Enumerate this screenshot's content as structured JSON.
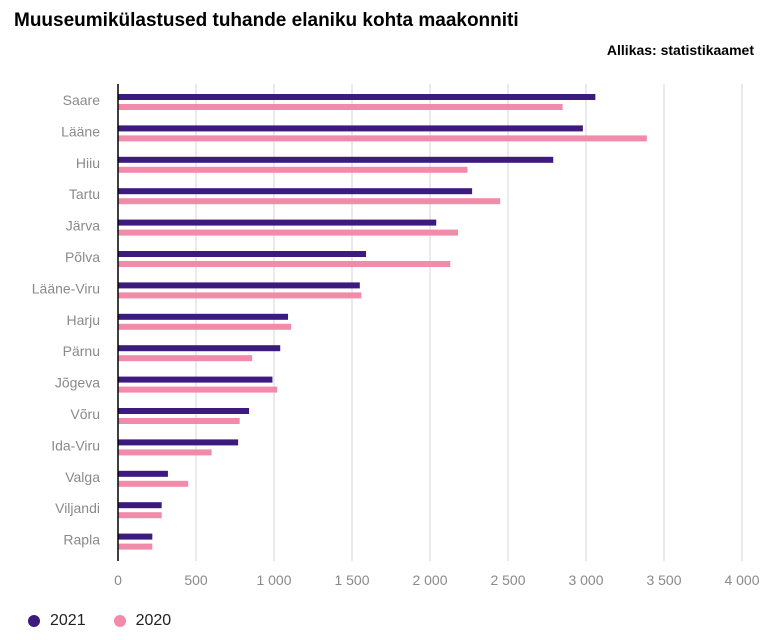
{
  "header": {
    "title": "Muuseumikülastused tuhande elaniku kohta maakonniti",
    "source": "Allikas: statistikaamet"
  },
  "chart_data": {
    "type": "bar",
    "orientation": "horizontal",
    "title": "Muuseumikülastused tuhande elaniku kohta maakonniti",
    "categories": [
      "Saare",
      "Lääne",
      "Hiiu",
      "Tartu",
      "Järva",
      "Põlva",
      "Lääne-Viru",
      "Harju",
      "Pärnu",
      "Jõgeva",
      "Võru",
      "Ida-Viru",
      "Valga",
      "Viljandi",
      "Rapla"
    ],
    "series": [
      {
        "name": "2021",
        "color": "#3c1a7e",
        "values": [
          3060,
          2980,
          2790,
          2270,
          2040,
          1590,
          1550,
          1090,
          1040,
          990,
          840,
          770,
          320,
          280,
          220
        ]
      },
      {
        "name": "2020",
        "color": "#f28aaa",
        "values": [
          2850,
          3390,
          2240,
          2450,
          2180,
          2130,
          1560,
          1110,
          860,
          1020,
          780,
          600,
          450,
          280,
          220
        ]
      }
    ],
    "xlim": [
      0,
      4000
    ],
    "xticks": [
      0,
      500,
      1000,
      1500,
      2000,
      2500,
      3000,
      3500,
      4000
    ],
    "xtick_labels": [
      "0",
      "500",
      "1 000",
      "1 500",
      "2 000",
      "2 500",
      "3 000",
      "3 500",
      "4 000"
    ],
    "grid": true,
    "legend_position": "bottom-left"
  }
}
